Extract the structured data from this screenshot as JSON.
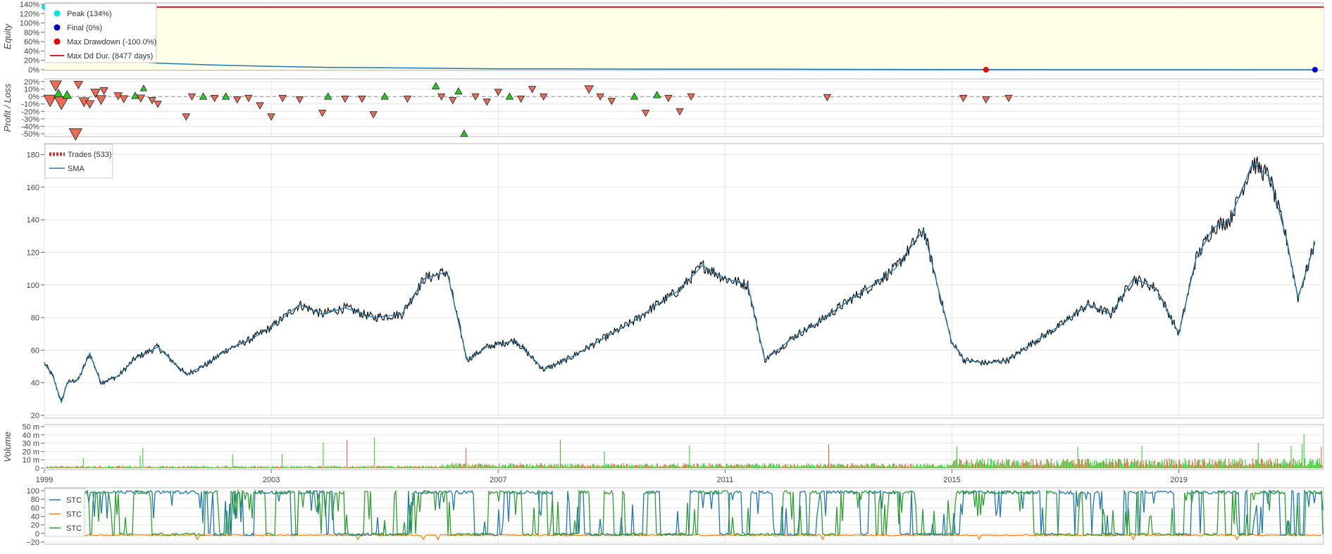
{
  "chart_data": [
    {
      "id": "equity",
      "type": "area",
      "ylabel": "Equity",
      "ylim": [
        0,
        140
      ],
      "y_ticks": [
        "140%",
        "120%",
        "100%",
        "80%",
        "60%",
        "40%",
        "20%",
        "0%"
      ],
      "y_values": [
        140,
        120,
        100,
        80,
        60,
        40,
        20,
        0
      ],
      "grid": true,
      "legend": "top-left",
      "legend_items": [
        {
          "label": "Peak (134%)",
          "color": "#00e5e5",
          "marker": "dot"
        },
        {
          "label": "Final (0%)",
          "color": "#0000cc",
          "marker": "dot"
        },
        {
          "label": "Max Drawdown (-100.0%)",
          "color": "#ee0000",
          "marker": "dot"
        },
        {
          "label": "Max Dd Dur. (8477 days)",
          "color": "#dd2222",
          "marker": "line"
        }
      ],
      "series": [
        {
          "x": [
            1999.0,
            1999.3,
            1999.6,
            2000.0,
            2000.5,
            2001.0,
            2002.0,
            2003.0,
            2004.0,
            2005.0,
            2006.0,
            2007.0,
            2008.0,
            2010.0,
            2012.0,
            2015.0,
            2018.0,
            2021.4
          ],
          "y": [
            134,
            60,
            40,
            24,
            18,
            14,
            10,
            7,
            5,
            4,
            3,
            2,
            2,
            1,
            1,
            0.5,
            0.2,
            0
          ]
        }
      ],
      "peak": {
        "x": 1999.0,
        "y": 134
      },
      "max_drawdown_point": {
        "x": 2015.6,
        "y": 0
      },
      "final_point": {
        "x": 2021.4,
        "y": 0
      },
      "drawdown_duration_line": 134
    },
    {
      "id": "profit-loss",
      "type": "scatter",
      "ylabel": "Profit / Loss",
      "ylim": [
        -50,
        20
      ],
      "y_ticks": [
        "20%",
        "10%",
        "0%",
        "-10%",
        "-20%",
        "-30%",
        "-40%",
        "-50%"
      ],
      "y_values": [
        20,
        10,
        0,
        -10,
        -20,
        -30,
        -40,
        -50
      ],
      "grid": true,
      "zero_line": "dashed",
      "points": [
        {
          "x": 1999.1,
          "y": -5,
          "up": false,
          "s": 14
        },
        {
          "x": 1999.2,
          "y": 15,
          "up": false,
          "s": 12
        },
        {
          "x": 1999.25,
          "y": 3,
          "up": true,
          "s": 10
        },
        {
          "x": 1999.3,
          "y": -8,
          "up": false,
          "s": 16
        },
        {
          "x": 1999.4,
          "y": 2,
          "up": true,
          "s": 8
        },
        {
          "x": 1999.55,
          "y": -50,
          "up": false,
          "s": 14
        },
        {
          "x": 1999.6,
          "y": 16,
          "up": false,
          "s": 8
        },
        {
          "x": 1999.7,
          "y": -7,
          "up": false,
          "s": 10
        },
        {
          "x": 1999.8,
          "y": -10,
          "up": false,
          "s": 8
        },
        {
          "x": 1999.9,
          "y": 5,
          "up": false,
          "s": 9
        },
        {
          "x": 2000.0,
          "y": -4,
          "up": false,
          "s": 10
        },
        {
          "x": 2000.05,
          "y": 8,
          "up": false,
          "s": 7
        },
        {
          "x": 2000.3,
          "y": 1,
          "up": false,
          "s": 7
        },
        {
          "x": 2000.4,
          "y": -3,
          "up": false,
          "s": 7
        },
        {
          "x": 2000.6,
          "y": 1,
          "up": true,
          "s": 6
        },
        {
          "x": 2000.7,
          "y": -2,
          "up": false,
          "s": 7
        },
        {
          "x": 2000.75,
          "y": 11,
          "up": true,
          "s": 5
        },
        {
          "x": 2000.9,
          "y": -5,
          "up": false,
          "s": 6
        },
        {
          "x": 2001.0,
          "y": -10,
          "up": false,
          "s": 6
        },
        {
          "x": 2001.5,
          "y": -27,
          "up": false,
          "s": 6
        },
        {
          "x": 2001.6,
          "y": 0,
          "up": false,
          "s": 6
        },
        {
          "x": 2001.8,
          "y": 0,
          "up": true,
          "s": 6
        },
        {
          "x": 2002.0,
          "y": -2,
          "up": false,
          "s": 6
        },
        {
          "x": 2002.2,
          "y": 0,
          "up": true,
          "s": 6
        },
        {
          "x": 2002.4,
          "y": -4,
          "up": false,
          "s": 6
        },
        {
          "x": 2002.6,
          "y": -2,
          "up": false,
          "s": 6
        },
        {
          "x": 2002.8,
          "y": -12,
          "up": false,
          "s": 6
        },
        {
          "x": 2003.0,
          "y": -27,
          "up": false,
          "s": 6
        },
        {
          "x": 2003.2,
          "y": -2,
          "up": false,
          "s": 6
        },
        {
          "x": 2003.5,
          "y": -4,
          "up": false,
          "s": 6
        },
        {
          "x": 2003.9,
          "y": -22,
          "up": false,
          "s": 6
        },
        {
          "x": 2004.0,
          "y": 0,
          "up": true,
          "s": 6
        },
        {
          "x": 2004.3,
          "y": -3,
          "up": false,
          "s": 6
        },
        {
          "x": 2004.6,
          "y": -3,
          "up": false,
          "s": 6
        },
        {
          "x": 2004.8,
          "y": -24,
          "up": false,
          "s": 6
        },
        {
          "x": 2005.0,
          "y": 0,
          "up": true,
          "s": 6
        },
        {
          "x": 2005.4,
          "y": -3,
          "up": false,
          "s": 6
        },
        {
          "x": 2005.9,
          "y": 14,
          "up": true,
          "s": 6
        },
        {
          "x": 2006.0,
          "y": 0,
          "up": false,
          "s": 6
        },
        {
          "x": 2006.2,
          "y": -5,
          "up": false,
          "s": 6
        },
        {
          "x": 2006.3,
          "y": 7,
          "up": true,
          "s": 6
        },
        {
          "x": 2006.4,
          "y": -50,
          "up": true,
          "s": 6
        },
        {
          "x": 2006.6,
          "y": 0,
          "up": false,
          "s": 6
        },
        {
          "x": 2006.8,
          "y": -7,
          "up": false,
          "s": 6
        },
        {
          "x": 2007.0,
          "y": 6,
          "up": false,
          "s": 6
        },
        {
          "x": 2007.2,
          "y": 0,
          "up": true,
          "s": 6
        },
        {
          "x": 2007.4,
          "y": -3,
          "up": false,
          "s": 6
        },
        {
          "x": 2007.6,
          "y": 10,
          "up": false,
          "s": 6
        },
        {
          "x": 2007.8,
          "y": 0,
          "up": false,
          "s": 6
        },
        {
          "x": 2008.6,
          "y": 10,
          "up": false,
          "s": 8
        },
        {
          "x": 2008.8,
          "y": 0,
          "up": false,
          "s": 6
        },
        {
          "x": 2009.0,
          "y": -6,
          "up": false,
          "s": 6
        },
        {
          "x": 2009.4,
          "y": 0,
          "up": true,
          "s": 6
        },
        {
          "x": 2009.6,
          "y": -22,
          "up": false,
          "s": 6
        },
        {
          "x": 2009.8,
          "y": 2,
          "up": true,
          "s": 6
        },
        {
          "x": 2010.0,
          "y": -2,
          "up": false,
          "s": 6
        },
        {
          "x": 2010.2,
          "y": -20,
          "up": false,
          "s": 6
        },
        {
          "x": 2010.4,
          "y": 0,
          "up": false,
          "s": 6
        },
        {
          "x": 2012.8,
          "y": -1,
          "up": false,
          "s": 6
        },
        {
          "x": 2015.2,
          "y": -2,
          "up": false,
          "s": 6
        },
        {
          "x": 2015.6,
          "y": -4,
          "up": false,
          "s": 6
        },
        {
          "x": 2016.0,
          "y": -2,
          "up": false,
          "s": 6
        }
      ]
    },
    {
      "id": "ohlc",
      "type": "line",
      "ylim": [
        20,
        185
      ],
      "y_ticks": [
        "180",
        "160",
        "140",
        "120",
        "100",
        "80",
        "60",
        "40",
        "20"
      ],
      "y_values": [
        180,
        160,
        140,
        120,
        100,
        80,
        60,
        40,
        20
      ],
      "grid": true,
      "legend": "top-left",
      "legend_items": [
        {
          "label": "Trades (533)",
          "color": "#c0392b",
          "marker": "dashed"
        },
        {
          "label": "SMA",
          "color": "#1f77b4",
          "marker": "line"
        }
      ],
      "series": [
        {
          "name": "SMA",
          "x": [
            1999.0,
            1999.15,
            1999.3,
            1999.4,
            1999.6,
            1999.8,
            2000.0,
            2000.3,
            2000.6,
            2001.0,
            2001.5,
            2001.9,
            2002.2,
            2002.6,
            2003.0,
            2003.5,
            2003.9,
            2004.3,
            2004.8,
            2005.3,
            2005.7,
            2006.1,
            2006.45,
            2006.5,
            2006.8,
            2007.3,
            2007.8,
            2008.2,
            2008.6,
            2009.0,
            2009.4,
            2009.8,
            2010.2,
            2010.6,
            2011.0,
            2011.4,
            2011.7,
            2012.0,
            2012.2,
            2012.6,
            2013.0,
            2013.6,
            2014.0,
            2014.5,
            2015.0,
            2015.15,
            2015.2,
            2015.6,
            2016.0,
            2016.4,
            2016.9,
            2017.4,
            2017.8,
            2018.2,
            2018.6,
            2019.0,
            2019.3,
            2019.6,
            2019.9,
            2020.3,
            2020.6,
            2020.9,
            2021.1,
            2021.4
          ],
          "y": [
            52,
            44,
            28,
            40,
            42,
            58,
            40,
            44,
            55,
            62,
            45,
            52,
            60,
            66,
            74,
            88,
            82,
            86,
            80,
            82,
            104,
            108,
            54,
            55,
            62,
            66,
            48,
            54,
            62,
            70,
            78,
            88,
            97,
            112,
            104,
            100,
            54,
            62,
            68,
            76,
            86,
            100,
            110,
            134,
            64,
            58,
            54,
            52,
            54,
            64,
            75,
            88,
            82,
            104,
            98,
            70,
            116,
            135,
            140,
            175,
            166,
            128,
            92,
            126
          ]
        }
      ]
    },
    {
      "id": "volume",
      "type": "bar",
      "ylabel": "Volume",
      "ylim": [
        0,
        50
      ],
      "y_ticks": [
        "50 m",
        "40 m",
        "30 m",
        "20 m",
        "10 m",
        "0"
      ],
      "y_values": [
        50,
        40,
        30,
        20,
        10,
        0
      ],
      "grid": true,
      "colors": {
        "up": "#22cc22",
        "down": "#ee5533"
      }
    },
    {
      "id": "oscillator",
      "type": "line",
      "ylim": [
        -20,
        100
      ],
      "y_ticks": [
        "100",
        "80",
        "60",
        "40",
        "20",
        "0",
        "−20"
      ],
      "y_values": [
        100,
        80,
        60,
        40,
        20,
        0,
        -20
      ],
      "grid": true,
      "legend": "top-left",
      "legend_items": [
        {
          "label": "STC",
          "color": "#1f77b4"
        },
        {
          "label": "STC",
          "color": "#ff7f0e"
        },
        {
          "label": "STC",
          "color": "#2ca02c"
        }
      ]
    }
  ],
  "x_axis": {
    "ticks": [
      "1999",
      "2003",
      "2007",
      "2011",
      "2015",
      "2019"
    ],
    "values": [
      1999,
      2003,
      2007,
      2011,
      2015,
      2019
    ],
    "xlim": [
      1999.0,
      2021.55
    ]
  },
  "colors": {
    "background": "#ffffff",
    "equity_fill": "#ffffe8",
    "equity_line": "#1f77b4",
    "red": "#dd2222",
    "profit_up": "#22cc22",
    "loss_down": "#ee6b55",
    "price_line": "#111111",
    "grid": "#e6e6e6",
    "frame": "#bbbbbb"
  }
}
